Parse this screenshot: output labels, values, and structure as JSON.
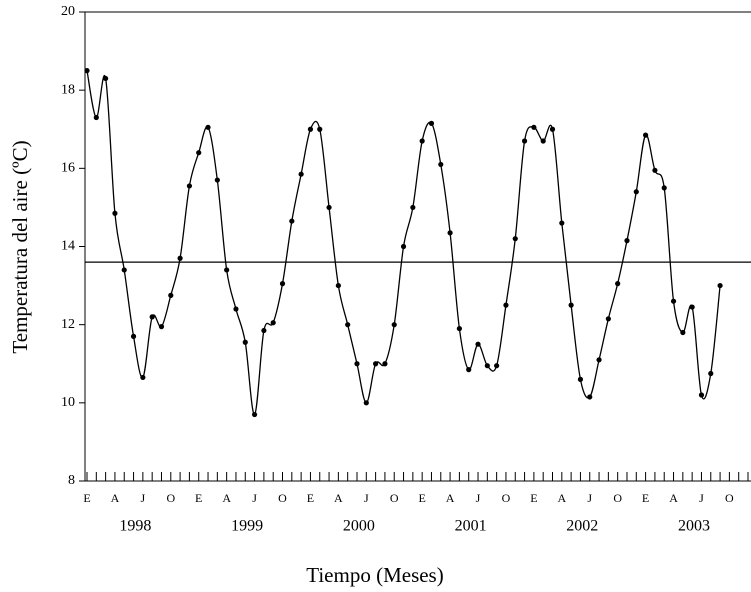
{
  "chart_data": {
    "type": "line",
    "xlabel": "Tiempo (Meses)",
    "ylabel": "Temperatura del aire (ºC)",
    "categories": [
      "E",
      null,
      null,
      "A",
      null,
      null,
      "J",
      null,
      null,
      "O",
      null,
      null,
      "E",
      null,
      null,
      "A",
      null,
      null,
      "J",
      null,
      null,
      "O",
      null,
      null,
      "E",
      null,
      null,
      "A",
      null,
      null,
      "J",
      null,
      null,
      "O",
      null,
      null,
      "E",
      null,
      null,
      "A",
      null,
      null,
      "J",
      null,
      null,
      "O",
      null,
      null,
      "E",
      null,
      null,
      "A",
      null,
      null,
      "J",
      null,
      null,
      "O",
      null,
      null,
      "E",
      null,
      null,
      "A",
      null,
      null,
      "J",
      null,
      null,
      "O",
      null,
      null
    ],
    "year_labels": [
      "1998",
      "1999",
      "2000",
      "2001",
      "2002",
      "2003"
    ],
    "series": [
      {
        "color": "#000000",
        "values": [
          18.5,
          17.3,
          18.3,
          14.85,
          13.4,
          11.7,
          10.65,
          12.2,
          11.95,
          12.75,
          13.7,
          15.55,
          16.4,
          17.05,
          15.7,
          13.4,
          12.4,
          11.55,
          9.7,
          11.85,
          12.05,
          13.05,
          14.65,
          15.85,
          17.0,
          17.0,
          15.0,
          13.0,
          12.0,
          11.0,
          10.0,
          11.0,
          11.0,
          12.0,
          14.0,
          15.0,
          16.7,
          17.15,
          16.1,
          14.35,
          11.9,
          10.85,
          11.5,
          10.95,
          10.95,
          12.5,
          14.2,
          16.7,
          17.05,
          16.7,
          17.0,
          14.6,
          12.5,
          10.6,
          10.15,
          11.1,
          12.15,
          13.05,
          14.15,
          15.4,
          16.85,
          15.95,
          15.5,
          12.6,
          11.8,
          12.45,
          10.2,
          10.75,
          13.0,
          null,
          null,
          null
        ]
      }
    ],
    "reference_line": 13.6,
    "ylim": [
      8,
      20
    ],
    "yticks": [
      8,
      10,
      12,
      14,
      16,
      18,
      20
    ]
  }
}
